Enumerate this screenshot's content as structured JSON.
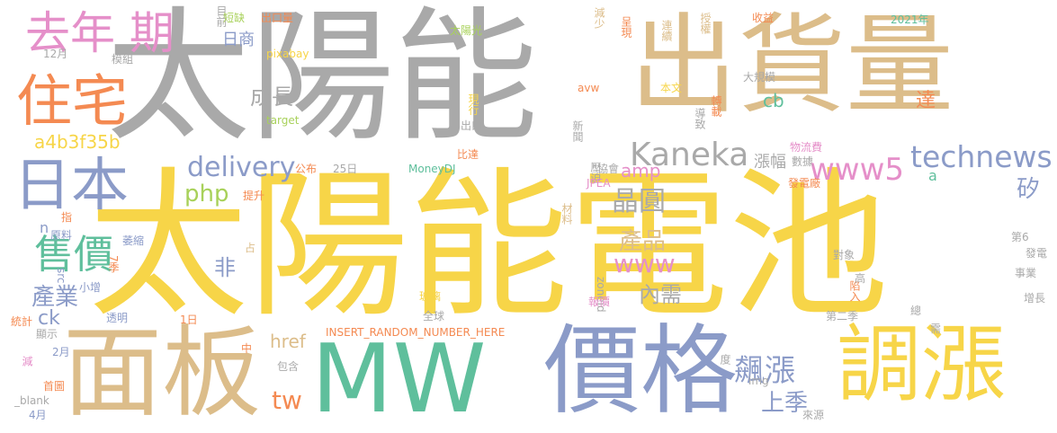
{
  "palette": {
    "yellow": "#f7d548",
    "gray": "#a9a9a9",
    "tan": "#dcbd8a",
    "blue": "#8b9bc8",
    "green": "#5fbf9c",
    "orange": "#f48a52",
    "pink": "#e58fc9",
    "lime": "#a8d15a"
  },
  "words": [
    "太陽能電池",
    "太陽能",
    "出貨量",
    "面板",
    "MW",
    "價格",
    "調漲",
    "住宅",
    "日本",
    "去年 期",
    "Kaneka",
    "technews",
    "www5",
    "delivery",
    "php",
    "晶圓",
    "售價",
    "產品",
    "www",
    "飆漲",
    "上季",
    "產業",
    "成長",
    "非",
    "內需",
    "tw",
    "href",
    "矽",
    "a4b3f35b",
    "cb",
    "達",
    "amp",
    "漲幅",
    "ck",
    "日商",
    "pixabay",
    "目前",
    "短缺",
    "出口量",
    "模組",
    "12月",
    "太陽光",
    "減少",
    "呈現",
    "連續",
    "授權",
    "收益",
    "2021年",
    "大規模",
    "本文",
    "轉載",
    "導致",
    "現行",
    "出口",
    "target",
    "avw",
    "新聞",
    "物流費",
    "數據",
    "公布",
    "25日",
    "MoneyDJ",
    "壓迫",
    "協會",
    "JPEA",
    "比達",
    "發電廠",
    "提升",
    "指",
    "材料",
    "萎縮",
    "原料",
    "占",
    "7季",
    "小增",
    "src",
    "透明",
    "1日",
    "統計",
    "顯示",
    "2月",
    "減",
    "中",
    "首圖",
    "_blank",
    "4月",
    "INSERT_RANDOM_NUMBER_HERE",
    "全球",
    "玻璃",
    "zoneid",
    "報價",
    "img",
    "包含",
    "來源",
    "第二季",
    "陷入",
    "對象",
    "高",
    "增長",
    "事業",
    "發電",
    "第6",
    "度",
    "總",
    "需",
    "a",
    "n"
  ]
}
